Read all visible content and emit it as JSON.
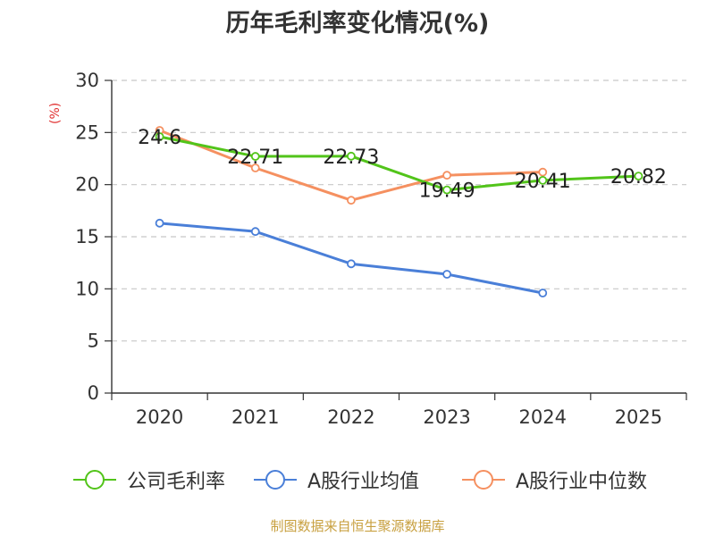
{
  "unit": "(%)",
  "source": "制图数据来自恒生聚源数据库",
  "chart_data": {
    "type": "line",
    "title": "历年毛利率变化情况(%)",
    "ylabel": "(%)",
    "xlabel": "",
    "categories": [
      "2020",
      "2021",
      "2022",
      "2023",
      "2024",
      "2025"
    ],
    "ylim": [
      0,
      30
    ],
    "yticks": [
      0,
      5,
      10,
      15,
      20,
      25,
      30
    ],
    "grid": "horizontal dashed",
    "legend_position": "bottom",
    "series": [
      {
        "name": "公司毛利率",
        "color": "#52c41a",
        "values": [
          24.6,
          22.71,
          22.73,
          19.49,
          20.41,
          20.82
        ],
        "labels": [
          "24.6",
          "22.71",
          "22.73",
          "19.49",
          "20.41",
          "20.82"
        ]
      },
      {
        "name": "A股行业均值",
        "color": "#4a7fd8",
        "values": [
          16.3,
          15.5,
          12.4,
          11.4,
          9.6,
          null
        ]
      },
      {
        "name": "A股行业中位数",
        "color": "#f59060",
        "values": [
          25.2,
          21.6,
          18.5,
          20.9,
          21.2,
          null
        ]
      }
    ]
  }
}
